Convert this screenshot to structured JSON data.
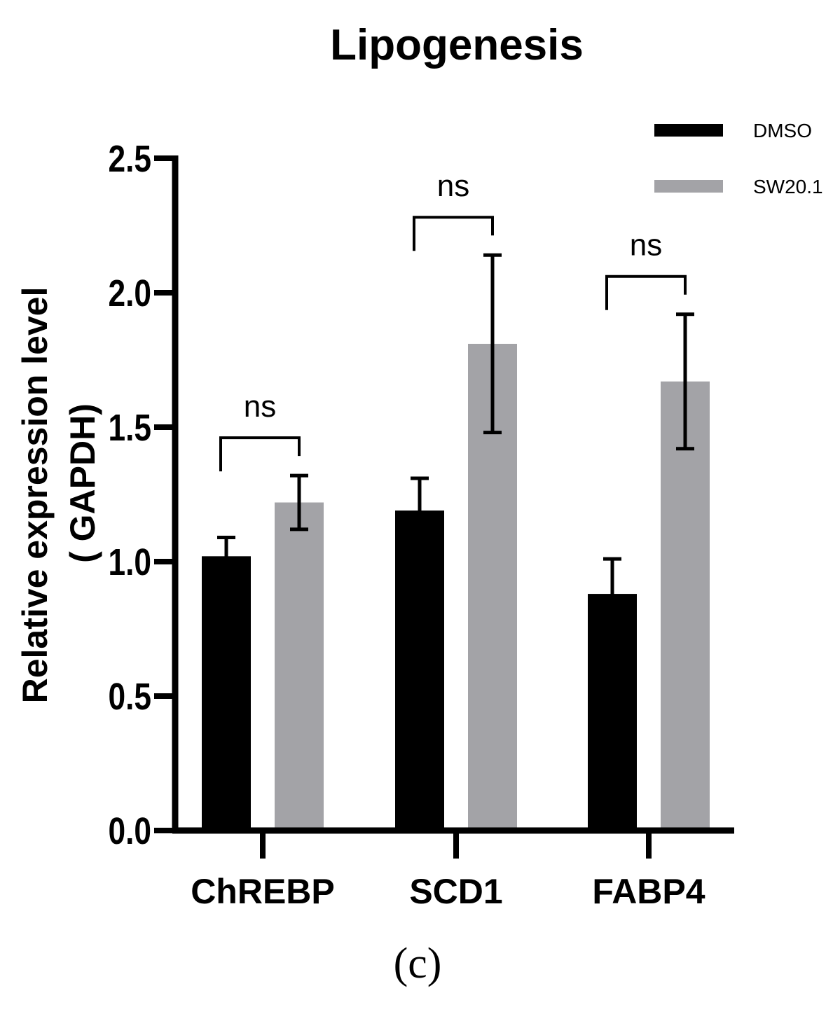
{
  "chart_data": {
    "type": "bar",
    "title": "Lipogenesis",
    "ylabel_line1": "Relative expression level",
    "ylabel_line2": "( GAPDH)",
    "xlabel": "",
    "ylim": [
      0,
      2.5
    ],
    "yticks": [
      "0.0",
      "0.5",
      "1.0",
      "1.5",
      "2.0",
      "2.5"
    ],
    "categories": [
      "ChREBP",
      "SCD1",
      "FABP4"
    ],
    "series": [
      {
        "name": "DMSO",
        "color": "#000000",
        "values": [
          1.02,
          1.19,
          0.88
        ],
        "errors": [
          0.07,
          0.12,
          0.13
        ]
      },
      {
        "name": "SW20.1",
        "color": "#a3a3a7",
        "values": [
          1.22,
          1.81,
          1.67
        ],
        "errors": [
          0.1,
          0.33,
          0.25
        ]
      }
    ],
    "significance": [
      "ns",
      "ns",
      "ns"
    ],
    "legend_position": "top-right",
    "panel_label": "(c)"
  }
}
